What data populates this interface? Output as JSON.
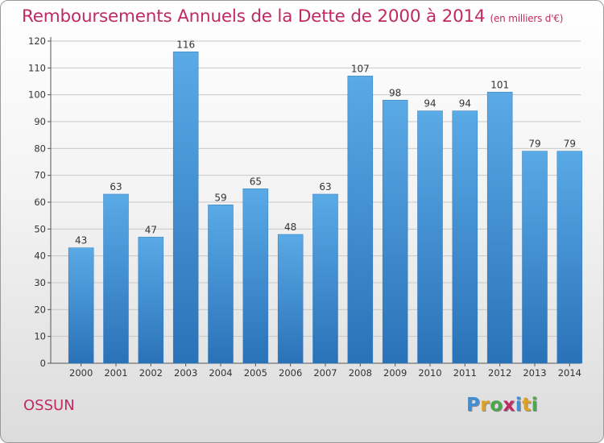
{
  "header": {
    "title": "Remboursements Annuels de la Dette de 2000 à 2014",
    "unit": "(en milliers d'€)"
  },
  "footer": {
    "city": "OSSUN",
    "logo_letters": [
      "P",
      "r",
      "o",
      "x",
      "i",
      "t",
      "i"
    ],
    "logo_colors": [
      "#3f8fd6",
      "#e0a020",
      "#4aa84a",
      "#c02a63",
      "#3f8fd6",
      "#e0a020",
      "#4aa84a"
    ]
  },
  "chart_data": {
    "type": "bar",
    "title": "Remboursements Annuels de la Dette de 2000 à 2014",
    "categories": [
      "2000",
      "2001",
      "2002",
      "2003",
      "2004",
      "2005",
      "2006",
      "2007",
      "2008",
      "2009",
      "2010",
      "2011",
      "2012",
      "2013",
      "2014"
    ],
    "values": [
      43,
      63,
      47,
      116,
      59,
      65,
      48,
      63,
      107,
      98,
      94,
      94,
      101,
      79,
      79
    ],
    "yticks": [
      0,
      10,
      20,
      30,
      40,
      50,
      60,
      70,
      80,
      90,
      100,
      110,
      120
    ],
    "ylim": [
      0,
      120
    ],
    "grid": true,
    "bar_color_top": "#5aaae6",
    "bar_color_bottom": "#2a72b8"
  }
}
